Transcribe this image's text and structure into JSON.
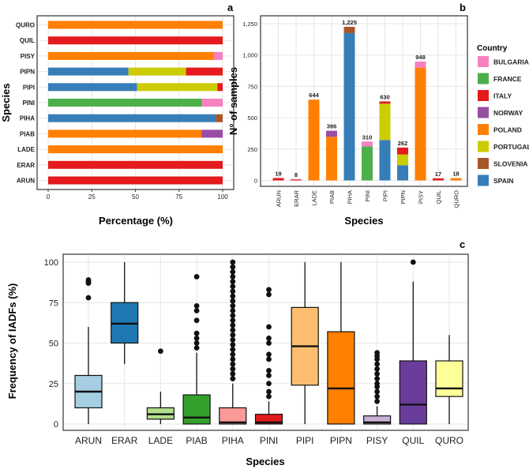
{
  "panels": {
    "a": {
      "label": "a",
      "type": "stacked-horizontal-bar",
      "xlabel": "Percentage (%)",
      "ylabel": "Species",
      "xlim": [
        0,
        100
      ],
      "xticks": [
        "0",
        "25",
        "50",
        "75",
        "100"
      ],
      "categories": [
        "ARUN",
        "ERAR",
        "LADE",
        "PIAB",
        "PIHA",
        "PINI",
        "PIPI",
        "PIPN",
        "PISY",
        "QUIL",
        "QURO"
      ],
      "stacks": {
        "ARUN": [
          {
            "country": "ITALY",
            "value": 100
          }
        ],
        "ERAR": [
          {
            "country": "ITALY",
            "value": 100
          }
        ],
        "LADE": [
          {
            "country": "POLAND",
            "value": 100
          }
        ],
        "PIAB": [
          {
            "country": "POLAND",
            "value": 88
          },
          {
            "country": "NORWAY",
            "value": 12
          }
        ],
        "PIHA": [
          {
            "country": "SPAIN",
            "value": 96
          },
          {
            "country": "SLOVENIA",
            "value": 4
          }
        ],
        "PINI": [
          {
            "country": "FRANCE",
            "value": 88
          },
          {
            "country": "BULGARIA",
            "value": 12
          }
        ],
        "PIPI": [
          {
            "country": "SPAIN",
            "value": 51
          },
          {
            "country": "PORTUGAL",
            "value": 46
          },
          {
            "country": "ITALY",
            "value": 3
          }
        ],
        "PIPN": [
          {
            "country": "SPAIN",
            "value": 46
          },
          {
            "country": "PORTUGAL",
            "value": 33
          },
          {
            "country": "ITALY",
            "value": 21
          }
        ],
        "PISY": [
          {
            "country": "POLAND",
            "value": 95
          },
          {
            "country": "BULGARIA",
            "value": 5
          }
        ],
        "QUIL": [
          {
            "country": "ITALY",
            "value": 100
          }
        ],
        "QURO": [
          {
            "country": "POLAND",
            "value": 100
          }
        ]
      }
    },
    "b": {
      "label": "b",
      "type": "stacked-bar",
      "xlabel": "Species",
      "ylabel": "N° of samples",
      "ylim": [
        0,
        1250
      ],
      "yticks": [
        "0",
        "250",
        "500",
        "750",
        "1,000",
        "1,250"
      ],
      "categories": [
        "ARUN",
        "ERAR",
        "LADE",
        "PIAB",
        "PIHA",
        "PINI",
        "PIPI",
        "PIPN",
        "PISY",
        "QUIL",
        "QURO"
      ],
      "totals": [
        "19",
        "8",
        "644",
        "396",
        "1,225",
        "310",
        "630",
        "262",
        "948",
        "17",
        "18"
      ],
      "stacks": {
        "ARUN": [
          {
            "country": "ITALY",
            "value": 19
          }
        ],
        "ERAR": [
          {
            "country": "ITALY",
            "value": 8
          }
        ],
        "LADE": [
          {
            "country": "POLAND",
            "value": 644
          }
        ],
        "PIAB": [
          {
            "country": "POLAND",
            "value": 348
          },
          {
            "country": "NORWAY",
            "value": 48
          }
        ],
        "PIHA": [
          {
            "country": "SPAIN",
            "value": 1175
          },
          {
            "country": "SLOVENIA",
            "value": 50
          }
        ],
        "PINI": [
          {
            "country": "FRANCE",
            "value": 272
          },
          {
            "country": "BULGARIA",
            "value": 38
          }
        ],
        "PIPI": [
          {
            "country": "SPAIN",
            "value": 322
          },
          {
            "country": "PORTUGAL",
            "value": 290
          },
          {
            "country": "ITALY",
            "value": 18
          }
        ],
        "PIPN": [
          {
            "country": "SPAIN",
            "value": 121
          },
          {
            "country": "PORTUGAL",
            "value": 86
          },
          {
            "country": "ITALY",
            "value": 55
          }
        ],
        "PISY": [
          {
            "country": "POLAND",
            "value": 900
          },
          {
            "country": "BULGARIA",
            "value": 48
          }
        ],
        "QUIL": [
          {
            "country": "ITALY",
            "value": 17
          }
        ],
        "QURO": [
          {
            "country": "POLAND",
            "value": 18
          }
        ]
      }
    },
    "c": {
      "label": "c",
      "type": "boxplot",
      "xlabel": "Species",
      "ylabel": "Frequency of IADFs (%)",
      "ylim": [
        0,
        100
      ],
      "yticks": [
        "0",
        "25",
        "50",
        "75",
        "100"
      ],
      "categories": [
        "ARUN",
        "ERAR",
        "LADE",
        "PIAB",
        "PIHA",
        "PINI",
        "PIPI",
        "PIPN",
        "PISY",
        "QUIL",
        "QURO"
      ],
      "boxes": [
        {
          "name": "ARUN",
          "min": 0,
          "q1": 10,
          "median": 20,
          "q3": 30,
          "max": 60,
          "outliers": [
            78,
            87,
            88,
            89
          ],
          "color": "#a6cee3"
        },
        {
          "name": "ERAR",
          "min": 37,
          "q1": 50,
          "median": 62,
          "q3": 75,
          "max": 100,
          "outliers": [],
          "color": "#1f78b4"
        },
        {
          "name": "LADE",
          "min": 0,
          "q1": 3,
          "median": 6,
          "q3": 10,
          "max": 20,
          "outliers": [
            45
          ],
          "color": "#b2df8a"
        },
        {
          "name": "PIAB",
          "min": 0,
          "q1": 0,
          "median": 4,
          "q3": 18,
          "max": 44,
          "outliers": [
            47,
            50,
            53,
            56,
            64,
            70,
            73,
            91
          ],
          "color": "#33a02c"
        },
        {
          "name": "PIHA",
          "min": 0,
          "q1": 0,
          "median": 1,
          "q3": 10,
          "max": 25,
          "outliers": [
            28,
            31,
            34,
            37,
            40,
            43,
            46,
            49,
            52,
            55,
            58,
            61,
            64,
            67,
            70,
            73,
            76,
            79,
            82,
            85,
            88,
            91,
            94,
            97,
            100
          ],
          "color": "#fb9a99"
        },
        {
          "name": "PINI",
          "min": 0,
          "q1": 0,
          "median": 1,
          "q3": 6,
          "max": 14,
          "outliers": [
            17,
            20,
            25,
            30,
            33,
            40,
            43,
            50,
            53,
            60,
            80,
            83
          ],
          "color": "#e31a1c"
        },
        {
          "name": "PIPI",
          "min": 0,
          "q1": 24,
          "median": 48,
          "q3": 72,
          "max": 100,
          "outliers": [],
          "color": "#fdbf6f"
        },
        {
          "name": "PIPN",
          "min": 0,
          "q1": 0,
          "median": 22,
          "q3": 57,
          "max": 100,
          "outliers": [],
          "color": "#ff7f00"
        },
        {
          "name": "PISY",
          "min": 0,
          "q1": 0,
          "median": 1,
          "q3": 5,
          "max": 11,
          "outliers": [
            14,
            17,
            20,
            23,
            25,
            28,
            31,
            34,
            37,
            40,
            42,
            44
          ],
          "color": "#cab2d6"
        },
        {
          "name": "QUIL",
          "min": 0,
          "q1": 0,
          "median": 12,
          "q3": 39,
          "max": 88,
          "outliers": [
            100
          ],
          "color": "#6a3d9a"
        },
        {
          "name": "QURO",
          "min": 0,
          "q1": 17,
          "median": 22,
          "q3": 39,
          "max": 55,
          "outliers": [],
          "color": "#ffff99"
        }
      ]
    }
  },
  "legend": {
    "title": "Country",
    "entries": [
      {
        "name": "BULGARIA",
        "color": "#f781bf"
      },
      {
        "name": "FRANCE",
        "color": "#4daf4a"
      },
      {
        "name": "ITALY",
        "color": "#e41a1c"
      },
      {
        "name": "NORWAY",
        "color": "#984ea3"
      },
      {
        "name": "POLAND",
        "color": "#ff7f00"
      },
      {
        "name": "PORTUGAL",
        "color": "#cccc00"
      },
      {
        "name": "SLOVENIA",
        "color": "#a65628"
      },
      {
        "name": "SPAIN",
        "color": "#377eb8"
      }
    ]
  },
  "chart_data": [
    {
      "type": "bar",
      "orientation": "horizontal",
      "stacked": true,
      "title": "a",
      "xlabel": "Percentage (%)",
      "ylabel": "Species",
      "xlim": [
        0,
        100
      ],
      "categories": [
        "ARUN",
        "ERAR",
        "LADE",
        "PIAB",
        "PIHA",
        "PINI",
        "PIPI",
        "PIPN",
        "PISY",
        "QUIL",
        "QURO"
      ],
      "series": [
        {
          "name": "BULGARIA",
          "values": [
            0,
            0,
            0,
            0,
            0,
            12,
            0,
            0,
            5,
            0,
            0
          ]
        },
        {
          "name": "FRANCE",
          "values": [
            0,
            0,
            0,
            0,
            0,
            88,
            0,
            0,
            0,
            0,
            0
          ]
        },
        {
          "name": "ITALY",
          "values": [
            100,
            100,
            0,
            0,
            0,
            0,
            3,
            21,
            0,
            100,
            0
          ]
        },
        {
          "name": "NORWAY",
          "values": [
            0,
            0,
            0,
            12,
            0,
            0,
            0,
            0,
            0,
            0,
            0
          ]
        },
        {
          "name": "POLAND",
          "values": [
            0,
            0,
            100,
            88,
            0,
            0,
            0,
            0,
            95,
            0,
            100
          ]
        },
        {
          "name": "PORTUGAL",
          "values": [
            0,
            0,
            0,
            0,
            0,
            0,
            46,
            33,
            0,
            0,
            0
          ]
        },
        {
          "name": "SLOVENIA",
          "values": [
            0,
            0,
            0,
            0,
            4,
            0,
            0,
            0,
            0,
            0,
            0
          ]
        },
        {
          "name": "SPAIN",
          "values": [
            0,
            0,
            0,
            0,
            96,
            0,
            51,
            46,
            0,
            0,
            0
          ]
        }
      ]
    },
    {
      "type": "bar",
      "stacked": true,
      "title": "b",
      "xlabel": "Species",
      "ylabel": "N° of samples",
      "ylim": [
        0,
        1250
      ],
      "categories": [
        "ARUN",
        "ERAR",
        "LADE",
        "PIAB",
        "PIHA",
        "PINI",
        "PIPI",
        "PIPN",
        "PISY",
        "QUIL",
        "QURO"
      ],
      "totals": [
        19,
        8,
        644,
        396,
        1225,
        310,
        630,
        262,
        948,
        17,
        18
      ],
      "series": [
        {
          "name": "BULGARIA",
          "values": [
            0,
            0,
            0,
            0,
            0,
            38,
            0,
            0,
            48,
            0,
            0
          ]
        },
        {
          "name": "FRANCE",
          "values": [
            0,
            0,
            0,
            0,
            0,
            272,
            0,
            0,
            0,
            0,
            0
          ]
        },
        {
          "name": "ITALY",
          "values": [
            19,
            8,
            0,
            0,
            0,
            0,
            18,
            55,
            0,
            17,
            0
          ]
        },
        {
          "name": "NORWAY",
          "values": [
            0,
            0,
            0,
            48,
            0,
            0,
            0,
            0,
            0,
            0,
            0
          ]
        },
        {
          "name": "POLAND",
          "values": [
            0,
            0,
            644,
            348,
            0,
            0,
            0,
            0,
            900,
            0,
            18
          ]
        },
        {
          "name": "PORTUGAL",
          "values": [
            0,
            0,
            0,
            0,
            0,
            0,
            290,
            86,
            0,
            0,
            0
          ]
        },
        {
          "name": "SLOVENIA",
          "values": [
            0,
            0,
            0,
            0,
            50,
            0,
            0,
            0,
            0,
            0,
            0
          ]
        },
        {
          "name": "SPAIN",
          "values": [
            0,
            0,
            0,
            0,
            1175,
            0,
            322,
            121,
            0,
            0,
            0
          ]
        }
      ]
    },
    {
      "type": "boxplot",
      "title": "c",
      "xlabel": "Species",
      "ylabel": "Frequency of IADFs (%)",
      "ylim": [
        0,
        100
      ],
      "categories": [
        "ARUN",
        "ERAR",
        "LADE",
        "PIAB",
        "PIHA",
        "PINI",
        "PIPI",
        "PIPN",
        "PISY",
        "QUIL",
        "QURO"
      ],
      "medians": [
        20,
        62,
        6,
        4,
        1,
        1,
        48,
        22,
        1,
        12,
        22
      ]
    }
  ]
}
